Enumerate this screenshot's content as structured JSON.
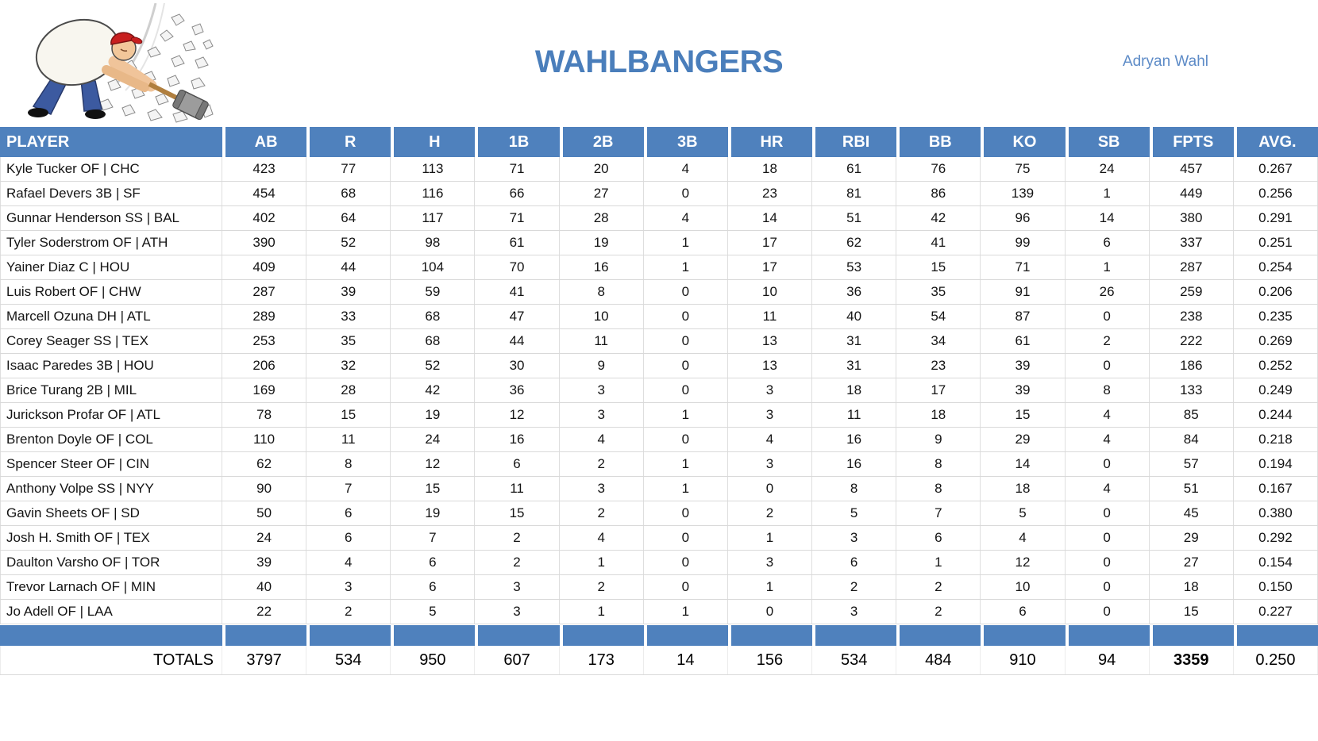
{
  "header": {
    "title": "WAHLBANGERS",
    "owner": "Adryan Wahl",
    "logo_icon": "hammer-smashing-rocks-cartoon"
  },
  "colors": {
    "accent_blue": "#4f81bd",
    "title_blue": "#4a7ebb",
    "owner_blue": "#5d8bc7"
  },
  "table": {
    "columns": [
      "PLAYER",
      "AB",
      "R",
      "H",
      "1B",
      "2B",
      "3B",
      "HR",
      "RBI",
      "BB",
      "KO",
      "SB",
      "FPTS",
      "AVG."
    ],
    "rows": [
      {
        "player": "Kyle Tucker OF | CHC",
        "stats": [
          423,
          77,
          113,
          71,
          20,
          4,
          18,
          61,
          76,
          75,
          24,
          457,
          "0.267"
        ]
      },
      {
        "player": "Rafael Devers 3B | SF",
        "stats": [
          454,
          68,
          116,
          66,
          27,
          0,
          23,
          81,
          86,
          139,
          1,
          449,
          "0.256"
        ]
      },
      {
        "player": "Gunnar Henderson SS | BAL",
        "stats": [
          402,
          64,
          117,
          71,
          28,
          4,
          14,
          51,
          42,
          96,
          14,
          380,
          "0.291"
        ]
      },
      {
        "player": "Tyler Soderstrom OF | ATH",
        "stats": [
          390,
          52,
          98,
          61,
          19,
          1,
          17,
          62,
          41,
          99,
          6,
          337,
          "0.251"
        ]
      },
      {
        "player": "Yainer Diaz C | HOU",
        "stats": [
          409,
          44,
          104,
          70,
          16,
          1,
          17,
          53,
          15,
          71,
          1,
          287,
          "0.254"
        ]
      },
      {
        "player": "Luis Robert OF | CHW",
        "stats": [
          287,
          39,
          59,
          41,
          8,
          0,
          10,
          36,
          35,
          91,
          26,
          259,
          "0.206"
        ]
      },
      {
        "player": "Marcell Ozuna DH | ATL",
        "stats": [
          289,
          33,
          68,
          47,
          10,
          0,
          11,
          40,
          54,
          87,
          0,
          238,
          "0.235"
        ]
      },
      {
        "player": "Corey Seager SS | TEX",
        "stats": [
          253,
          35,
          68,
          44,
          11,
          0,
          13,
          31,
          34,
          61,
          2,
          222,
          "0.269"
        ]
      },
      {
        "player": "Isaac Paredes 3B | HOU",
        "stats": [
          206,
          32,
          52,
          30,
          9,
          0,
          13,
          31,
          23,
          39,
          0,
          186,
          "0.252"
        ]
      },
      {
        "player": "Brice Turang 2B | MIL",
        "stats": [
          169,
          28,
          42,
          36,
          3,
          0,
          3,
          18,
          17,
          39,
          8,
          133,
          "0.249"
        ]
      },
      {
        "player": "Jurickson Profar OF | ATL",
        "stats": [
          78,
          15,
          19,
          12,
          3,
          1,
          3,
          11,
          18,
          15,
          4,
          85,
          "0.244"
        ]
      },
      {
        "player": "Brenton Doyle OF | COL",
        "stats": [
          110,
          11,
          24,
          16,
          4,
          0,
          4,
          16,
          9,
          29,
          4,
          84,
          "0.218"
        ]
      },
      {
        "player": "Spencer Steer OF | CIN",
        "stats": [
          62,
          8,
          12,
          6,
          2,
          1,
          3,
          16,
          8,
          14,
          0,
          57,
          "0.194"
        ]
      },
      {
        "player": "Anthony Volpe SS | NYY",
        "stats": [
          90,
          7,
          15,
          11,
          3,
          1,
          0,
          8,
          8,
          18,
          4,
          51,
          "0.167"
        ]
      },
      {
        "player": "Gavin Sheets OF | SD",
        "stats": [
          50,
          6,
          19,
          15,
          2,
          0,
          2,
          5,
          7,
          5,
          0,
          45,
          "0.380"
        ]
      },
      {
        "player": "Josh H. Smith OF | TEX",
        "stats": [
          24,
          6,
          7,
          2,
          4,
          0,
          1,
          3,
          6,
          4,
          0,
          29,
          "0.292"
        ]
      },
      {
        "player": "Daulton Varsho OF | TOR",
        "stats": [
          39,
          4,
          6,
          2,
          1,
          0,
          3,
          6,
          1,
          12,
          0,
          27,
          "0.154"
        ]
      },
      {
        "player": "Trevor Larnach OF | MIN",
        "stats": [
          40,
          3,
          6,
          3,
          2,
          0,
          1,
          2,
          2,
          10,
          0,
          18,
          "0.150"
        ]
      },
      {
        "player": "Jo Adell OF | LAA",
        "stats": [
          22,
          2,
          5,
          3,
          1,
          1,
          0,
          3,
          2,
          6,
          0,
          15,
          "0.227"
        ]
      }
    ],
    "totals": {
      "label": "TOTALS",
      "stats": [
        3797,
        534,
        950,
        607,
        173,
        14,
        156,
        534,
        484,
        910,
        94,
        3359,
        "0.250"
      ],
      "bold_stat_index": 11
    }
  }
}
